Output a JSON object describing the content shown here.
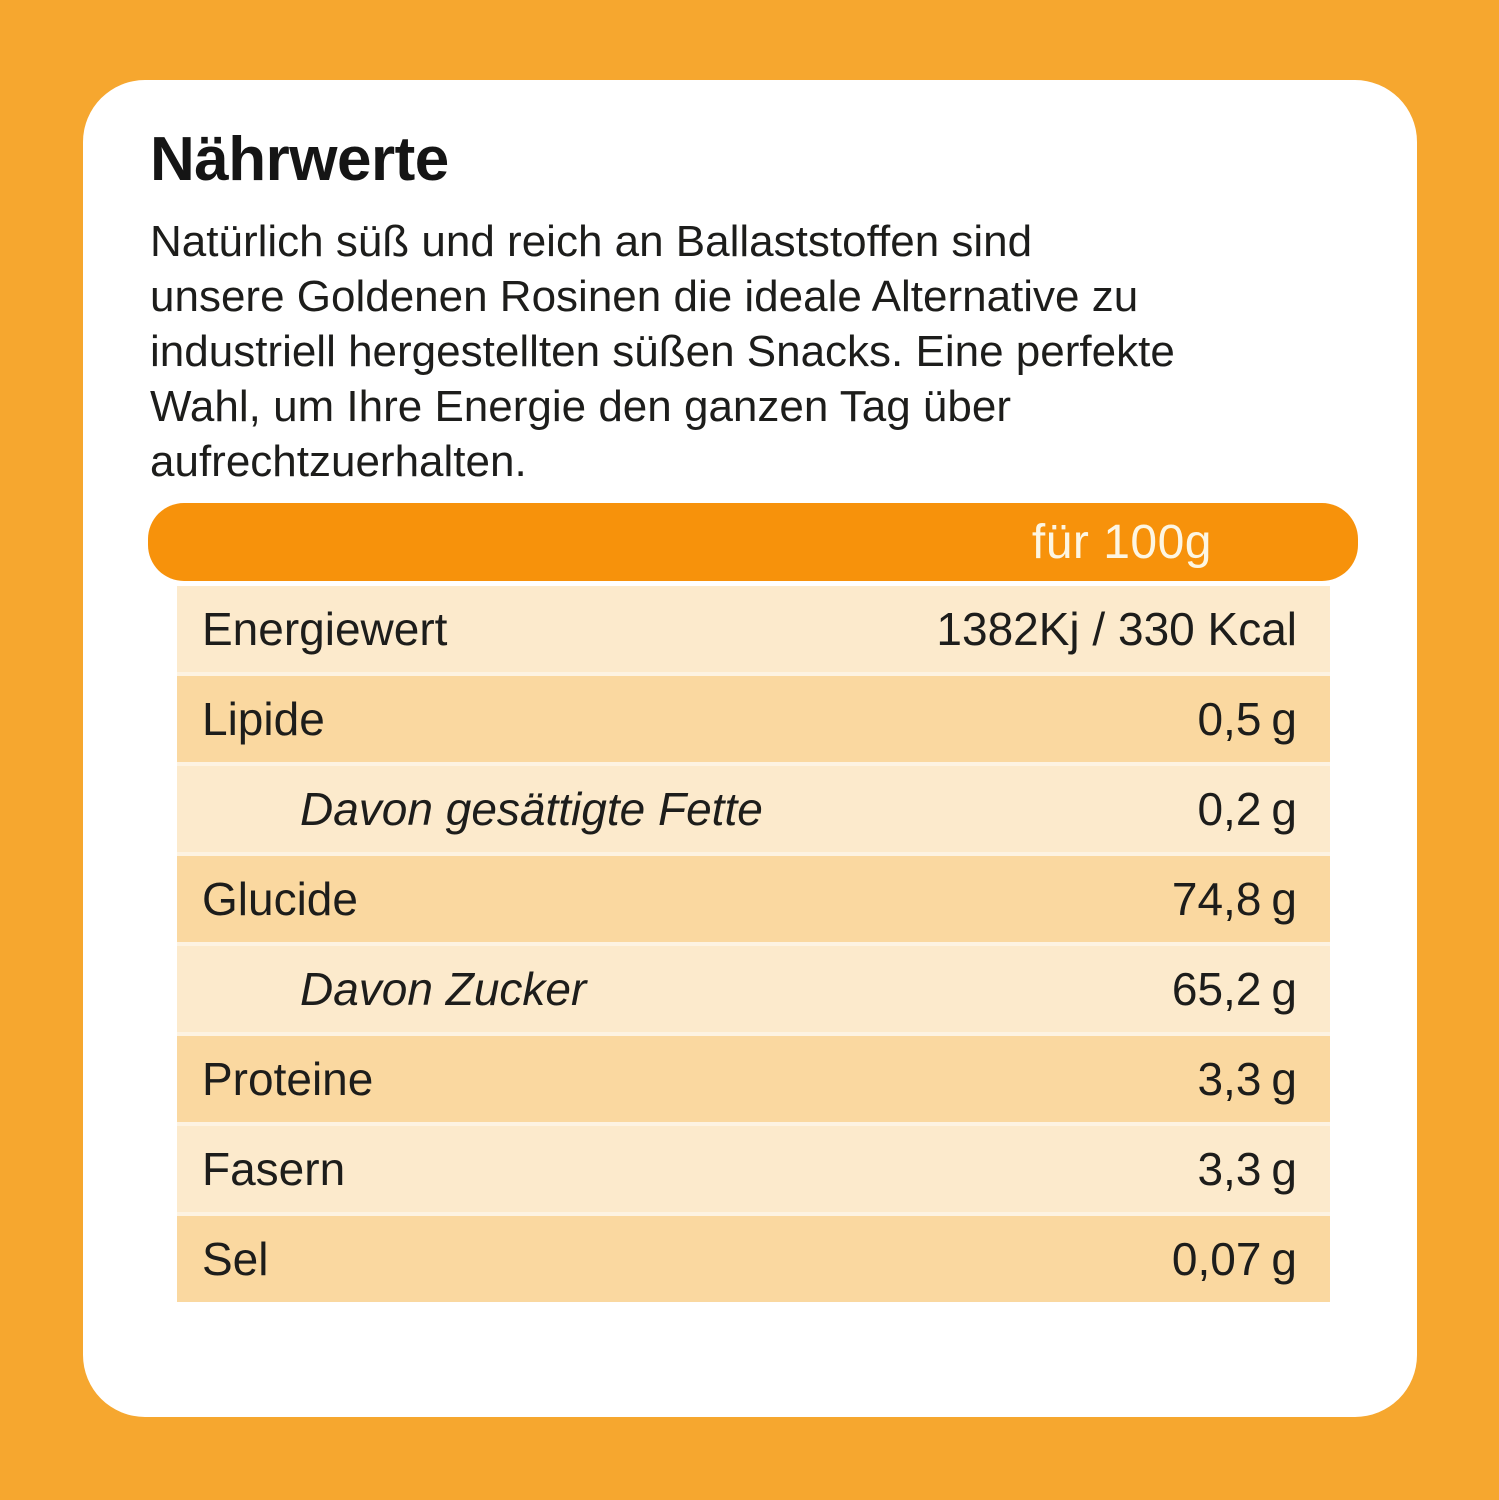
{
  "theme": {
    "frame": "#F6A72F",
    "bar": "#F7920B",
    "bar-text": "#FDF6E3",
    "row-light": "#FCEACC",
    "row-dark": "#FAD8A0",
    "row-gap": "#FDF3E2",
    "card": "#FFFFFF",
    "text": "#1D1D1B"
  },
  "card": {
    "title": "Nährwerte",
    "description_lines": [
      "Natürlich süß und reich an Ballaststoffen sind",
      "unsere Goldenen Rosinen die ideale Alternative zu",
      "industriell hergestellten süßen Snacks. Eine perfekte",
      "Wahl, um Ihre Energie den ganzen Tag über",
      "aufrechtzuerhalten."
    ],
    "serving_label": "für 100g"
  },
  "table": {
    "rows": [
      {
        "label": "Energiewert",
        "value": "1382Kj / 330 Kcal",
        "unit": ""
      },
      {
        "label": "Lipide",
        "value": "0,5",
        "unit": "g"
      },
      {
        "label": "Davon gesättigte Fette",
        "value": "0,2",
        "unit": "g"
      },
      {
        "label": "Glucide",
        "value": "74,8",
        "unit": "g"
      },
      {
        "label": "Davon Zucker",
        "value": "65,2",
        "unit": "g"
      },
      {
        "label": "Proteine",
        "value": "3,3",
        "unit": "g"
      },
      {
        "label": "Fasern",
        "value": "3,3",
        "unit": "g"
      },
      {
        "label": "Sel",
        "value": "0,07",
        "unit": "g"
      }
    ]
  }
}
